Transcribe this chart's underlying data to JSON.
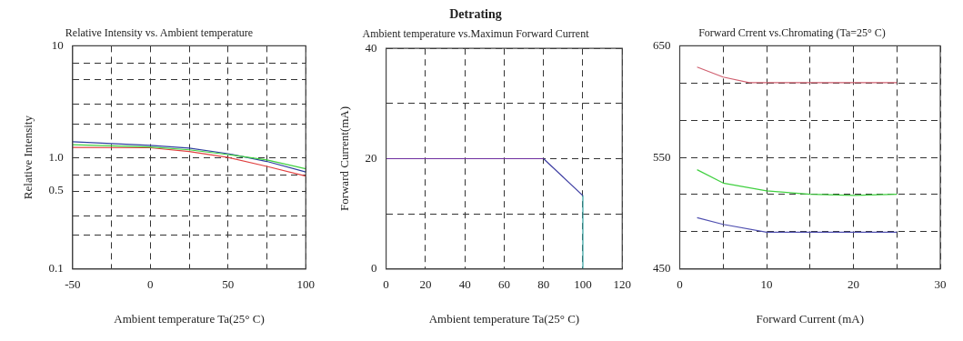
{
  "chart_data": [
    {
      "type": "line",
      "title": "Relative Intensity vs. Ambient temperature",
      "xlabel": "Ambient temperature Ta(25° C)",
      "ylabel": "Relative Intensity",
      "log": "y",
      "grid": true,
      "marker": "none",
      "xlim": [
        -50,
        100
      ],
      "xticks": [
        -50,
        {
          "value": -25,
          "label": null
        },
        0,
        {
          "value": 25,
          "label": null
        },
        50,
        {
          "value": 75,
          "label": null
        },
        100
      ],
      "ylim": [
        0.1,
        10
      ],
      "yticks": [
        0.1,
        {
          "value": 0.2,
          "label": null
        },
        {
          "value": 0.3,
          "label": null
        },
        0.5,
        {
          "value": 0.7,
          "label": null
        },
        {
          "value": 1,
          "label": "1.0"
        },
        {
          "value": 2,
          "label": null
        },
        {
          "value": 3,
          "label": null
        },
        {
          "value": 5,
          "label": null
        },
        {
          "value": 7,
          "label": null
        },
        10
      ],
      "series": [
        {
          "color": "#40d040",
          "x": [
            -50,
            0,
            25,
            50,
            75,
            100
          ],
          "values": [
            1.3,
            1.24,
            1.17,
            1.06,
            0.95,
            0.79
          ]
        },
        {
          "color": "#3040a0",
          "x": [
            -50,
            0,
            25,
            50,
            75,
            100
          ],
          "values": [
            1.38,
            1.28,
            1.21,
            1.08,
            0.92,
            0.74
          ]
        },
        {
          "color": "#e04040",
          "x": [
            -50,
            0,
            25,
            50,
            75,
            100
          ],
          "values": [
            1.23,
            1.22,
            1.13,
            1.0,
            0.83,
            0.68
          ]
        }
      ]
    },
    {
      "type": "line",
      "title": "Detrating",
      "subtitle": "Ambient temperature vs.Maximun Forward Current",
      "xlabel": "Ambient temperature Ta(25° C)",
      "ylabel": "Forward Current(mA)",
      "grid": true,
      "marker": "none",
      "xlim": [
        0,
        120
      ],
      "xticks": [
        0,
        20,
        40,
        60,
        80,
        100,
        120
      ],
      "ylim": [
        0,
        40
      ],
      "yticks": [
        0,
        {
          "value": 10,
          "label": null
        },
        20,
        {
          "value": 30,
          "label": null
        },
        40
      ],
      "series": [
        {
          "color": "#7030a0",
          "x": [
            0,
            80
          ],
          "values": [
            20,
            20
          ]
        },
        {
          "color": "#3a3aa0",
          "x": [
            80,
            100
          ],
          "values": [
            20,
            13.3
          ]
        },
        {
          "color": "#30a0a0",
          "x": [
            100,
            100
          ],
          "values": [
            13.3,
            0
          ]
        }
      ]
    },
    {
      "type": "line",
      "title": "Forward Crrent vs.Chromating (Ta=25° C)",
      "xlabel": "Forward Current (mA)",
      "grid": true,
      "marker": "none",
      "xlim": [
        0,
        30
      ],
      "xticks": [
        0,
        {
          "value": 5,
          "label": null
        },
        10,
        {
          "value": 15,
          "label": null
        },
        20,
        {
          "value": 25,
          "label": null
        },
        30
      ],
      "ylim": [
        450,
        650
      ],
      "yticks": [
        450,
        {
          "value": 483.3,
          "label": null
        },
        {
          "value": 516.7,
          "label": null
        },
        550,
        {
          "value": 583.3,
          "label": null
        },
        {
          "value": 616.7,
          "label": null
        },
        650
      ],
      "series": [
        {
          "color": "#d06070",
          "x": [
            2,
            5,
            8,
            10,
            15,
            20,
            25
          ],
          "values": [
            631,
            622,
            617,
            617,
            617,
            617,
            617
          ]
        },
        {
          "color": "#40d040",
          "x": [
            2,
            5,
            10,
            15,
            20,
            25
          ],
          "values": [
            539,
            527,
            520,
            517,
            516,
            517
          ]
        },
        {
          "color": "#5050b0",
          "x": [
            2,
            5,
            10,
            15,
            20,
            25
          ],
          "values": [
            496,
            490,
            483,
            483,
            483,
            483
          ]
        }
      ]
    }
  ]
}
